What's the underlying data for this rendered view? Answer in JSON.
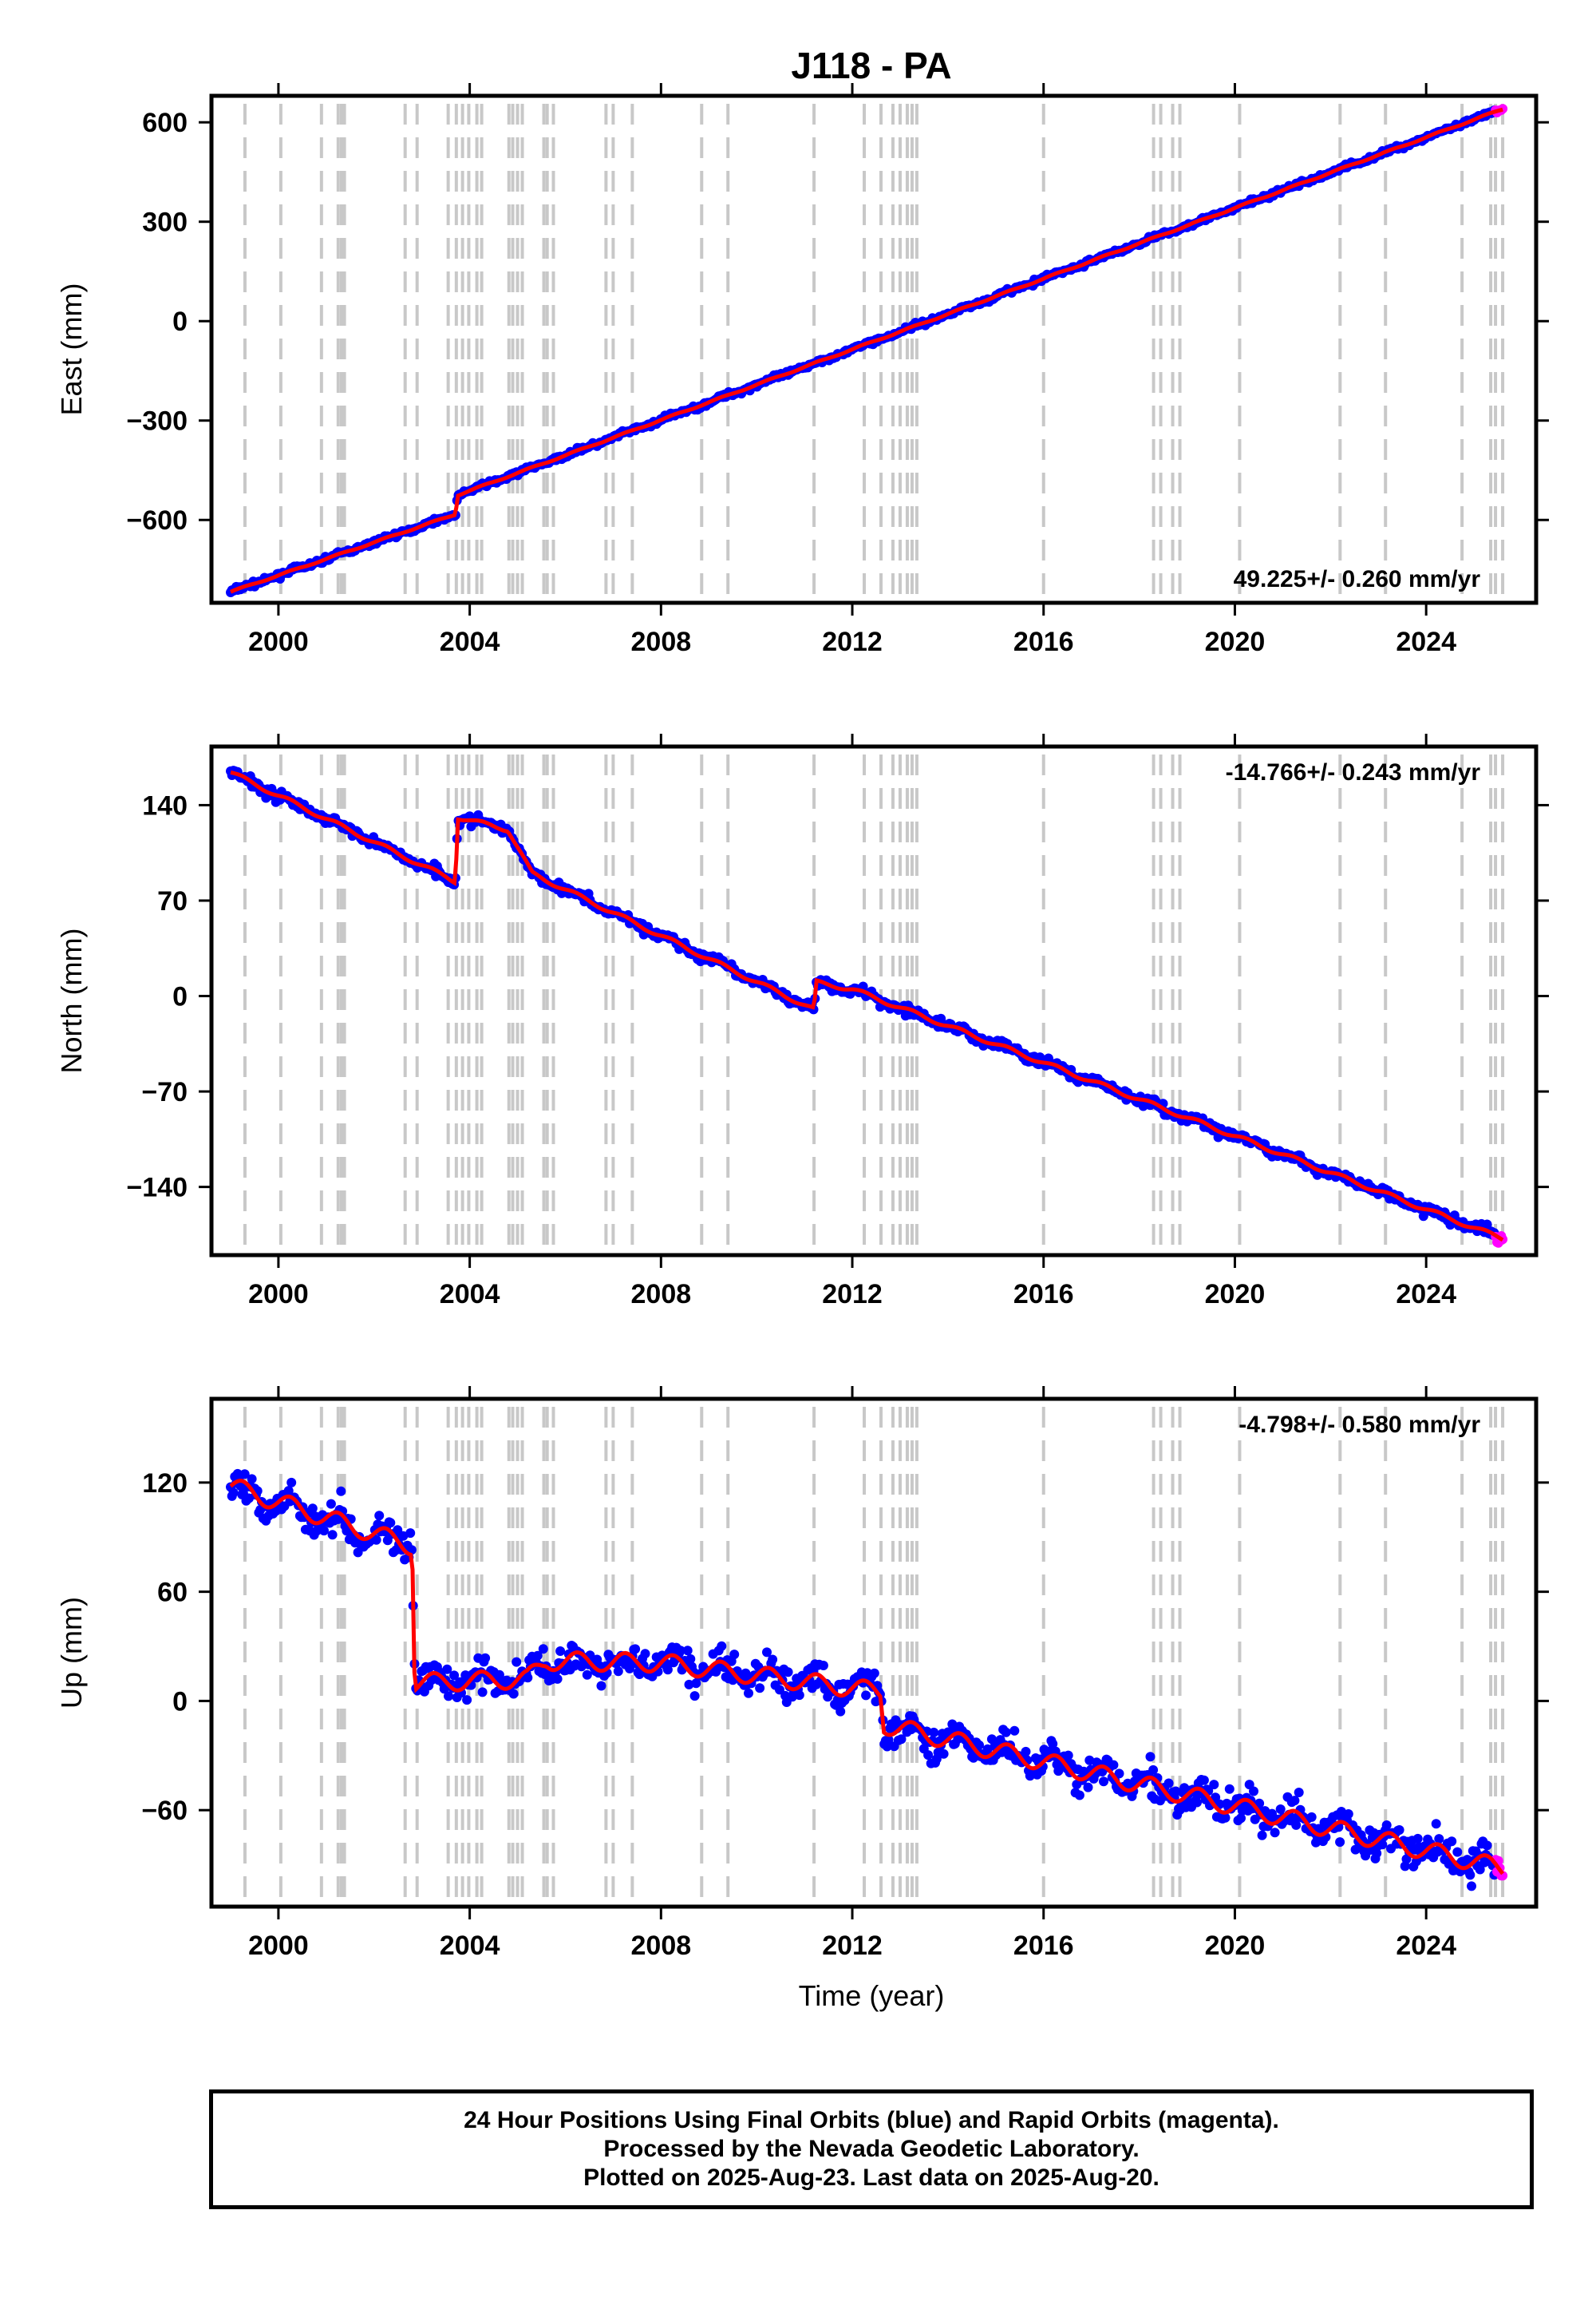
{
  "title": "J118 - PA",
  "xlabel": "Time (year)",
  "footer": {
    "line1": "24 Hour Positions Using Final Orbits (blue) and Rapid Orbits (magenta).",
    "line2": "Processed by the Nevada Geodetic Laboratory.",
    "line3": "Plotted on 2025-Aug-23. Last data on 2025-Aug-20."
  },
  "colors": {
    "final_orbits": "#0000ff",
    "rapid_orbits": "#ff00ff",
    "model": "#ff0000",
    "event_lines": "#c8c8c8"
  },
  "chart_data": [
    {
      "type": "scatter",
      "panel": "east",
      "ylabel": "East (mm)",
      "xlim": [
        1998.6,
        2026.3
      ],
      "ylim": [
        -850,
        680
      ],
      "xticks": [
        2000,
        2004,
        2008,
        2012,
        2016,
        2020,
        2024
      ],
      "xtick_labels": [
        "2000",
        "2004",
        "2008",
        "2012",
        "2016",
        "2020",
        "2024"
      ],
      "yticks": [
        -600,
        -300,
        0,
        300,
        600
      ],
      "ytick_labels": [
        "−600",
        "−300",
        "0",
        "300",
        "600"
      ],
      "rate": "49.225+/- 0.260 mm/yr",
      "rate_position": "bottom-right",
      "trend": [
        [
          1999.0,
          -817
        ],
        [
          2003.7,
          -583
        ],
        [
          2003.75,
          -525
        ],
        [
          2025.6,
          640
        ]
      ],
      "noise": 5,
      "seasonal": 2
    },
    {
      "type": "scatter",
      "panel": "north",
      "ylabel": "North (mm)",
      "xlim": [
        1998.6,
        2026.3
      ],
      "ylim": [
        -190,
        183
      ],
      "xticks": [
        2000,
        2004,
        2008,
        2012,
        2016,
        2020,
        2024
      ],
      "xtick_labels": [
        "2000",
        "2004",
        "2008",
        "2012",
        "2016",
        "2020",
        "2024"
      ],
      "yticks": [
        -140,
        -70,
        0,
        70,
        140
      ],
      "ytick_labels": [
        "−140",
        "−70",
        "0",
        "70",
        "140"
      ],
      "rate": "-14.766+/- 0.243 mm/yr",
      "rate_position": "top-right",
      "trend": [
        [
          1999.0,
          164
        ],
        [
          2003.7,
          84
        ],
        [
          2003.75,
          131
        ],
        [
          2004.8,
          122
        ],
        [
          2005.3,
          90
        ],
        [
          2011.2,
          -10
        ],
        [
          2011.25,
          10
        ],
        [
          2012.0,
          5
        ],
        [
          2025.6,
          -178
        ]
      ],
      "noise": 2.5,
      "seasonal": 1.5
    },
    {
      "type": "scatter",
      "panel": "up",
      "ylabel": "Up (mm)",
      "xlim": [
        1998.6,
        2026.3
      ],
      "ylim": [
        -113,
        166
      ],
      "xticks": [
        2000,
        2004,
        2008,
        2012,
        2016,
        2020,
        2024
      ],
      "xtick_labels": [
        "2000",
        "2004",
        "2008",
        "2012",
        "2016",
        "2020",
        "2024"
      ],
      "yticks": [
        -60,
        0,
        60,
        120
      ],
      "ytick_labels": [
        "−60",
        "0",
        "60",
        "120"
      ],
      "rate": "-4.798+/- 0.580 mm/yr",
      "rate_position": "top-right",
      "trend": [
        [
          1999.0,
          118
        ],
        [
          2002.8,
          85
        ],
        [
          2002.85,
          10
        ],
        [
          2005.2,
          12
        ],
        [
          2005.6,
          22
        ],
        [
          2008.0,
          21
        ],
        [
          2012.6,
          5
        ],
        [
          2012.65,
          -13
        ],
        [
          2025.6,
          -92
        ]
      ],
      "noise": 6,
      "seasonal": 5
    }
  ],
  "event_lines": [
    1999.3,
    2000.05,
    2000.9,
    2001.25,
    2001.32,
    2001.38,
    2002.65,
    2002.9,
    2003.55,
    2003.72,
    2003.85,
    2003.98,
    2004.15,
    2004.25,
    2004.82,
    2004.9,
    2005.0,
    2005.1,
    2005.55,
    2005.62,
    2005.75,
    2006.85,
    2007.0,
    2007.4,
    2008.85,
    2009.4,
    2011.2,
    2012.25,
    2012.6,
    2012.85,
    2013.0,
    2013.15,
    2013.25,
    2013.35,
    2016.0,
    2018.3,
    2018.45,
    2018.7,
    2018.85,
    2020.1,
    2022.2,
    2023.15,
    2024.75,
    2025.35,
    2025.45,
    2025.6
  ]
}
